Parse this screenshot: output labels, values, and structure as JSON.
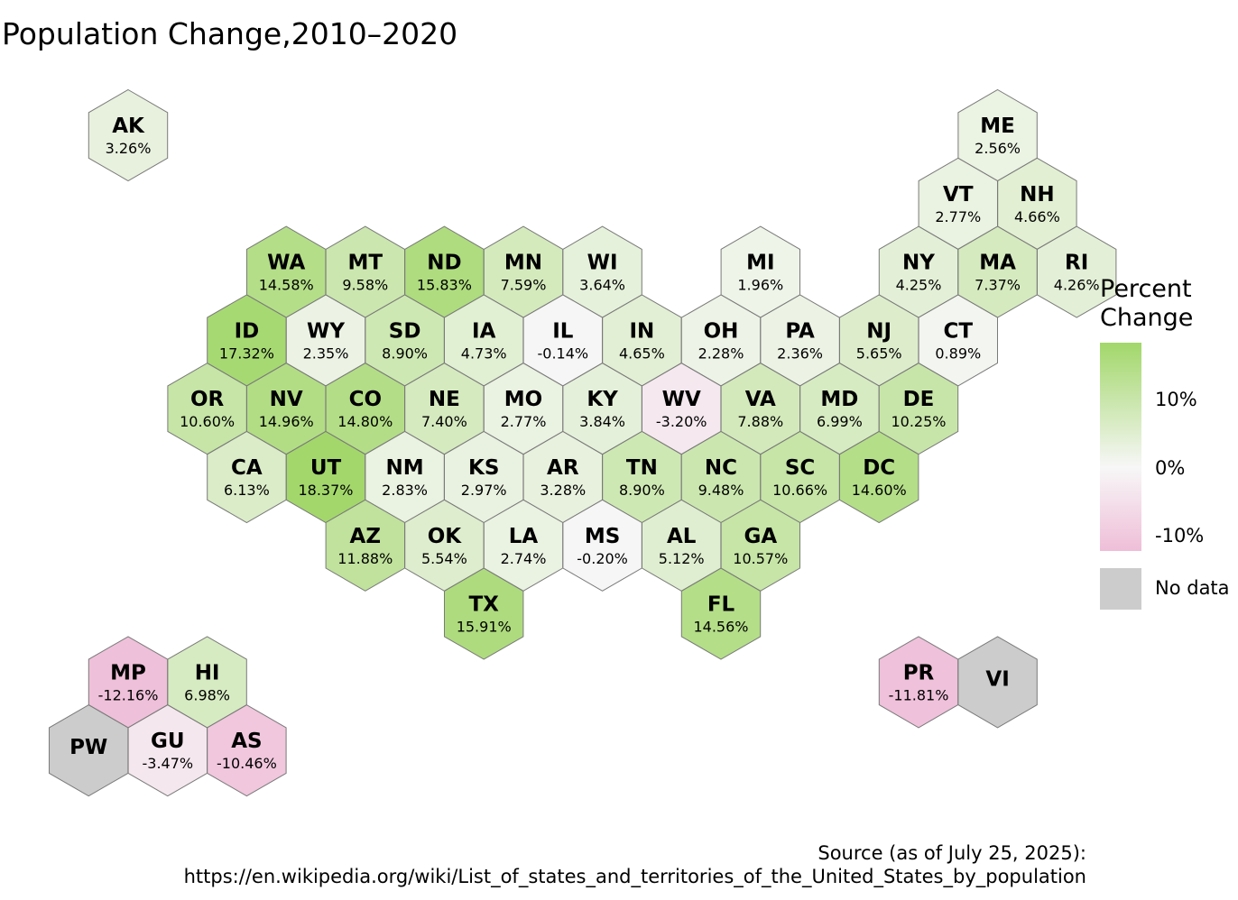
{
  "title": "Population Change,2010–2020",
  "legend": {
    "title_line1": "Percent",
    "title_line2": "Change",
    "ticks": [
      "10%",
      "0%",
      "-10%"
    ],
    "no_data_label": "No data",
    "colors": {
      "high": "#a2d76a",
      "mid": "#f7f7f7",
      "low": "#efbed8",
      "no_data": "#cccccc"
    }
  },
  "source": {
    "line1": "Source (as of July 25, 2025):",
    "line2": "https://en.wikipedia.org/wiki/List_of_states_and_territories_of_the_United_States_by_population"
  },
  "states": [
    {
      "code": "AK",
      "label": "3.26%",
      "value": 3.26
    },
    {
      "code": "ME",
      "label": "2.56%",
      "value": 2.56
    },
    {
      "code": "VT",
      "label": "2.77%",
      "value": 2.77
    },
    {
      "code": "NH",
      "label": "4.66%",
      "value": 4.66
    },
    {
      "code": "WA",
      "label": "14.58%",
      "value": 14.58
    },
    {
      "code": "MT",
      "label": "9.58%",
      "value": 9.58
    },
    {
      "code": "ND",
      "label": "15.83%",
      "value": 15.83
    },
    {
      "code": "MN",
      "label": "7.59%",
      "value": 7.59
    },
    {
      "code": "WI",
      "label": "3.64%",
      "value": 3.64
    },
    {
      "code": "MI",
      "label": "1.96%",
      "value": 1.96
    },
    {
      "code": "NY",
      "label": "4.25%",
      "value": 4.25
    },
    {
      "code": "MA",
      "label": "7.37%",
      "value": 7.37
    },
    {
      "code": "RI",
      "label": "4.26%",
      "value": 4.26
    },
    {
      "code": "ID",
      "label": "17.32%",
      "value": 17.32
    },
    {
      "code": "WY",
      "label": "2.35%",
      "value": 2.35
    },
    {
      "code": "SD",
      "label": "8.90%",
      "value": 8.9
    },
    {
      "code": "IA",
      "label": "4.73%",
      "value": 4.73
    },
    {
      "code": "IL",
      "label": "-0.14%",
      "value": -0.14
    },
    {
      "code": "IN",
      "label": "4.65%",
      "value": 4.65
    },
    {
      "code": "OH",
      "label": "2.28%",
      "value": 2.28
    },
    {
      "code": "PA",
      "label": "2.36%",
      "value": 2.36
    },
    {
      "code": "NJ",
      "label": "5.65%",
      "value": 5.65
    },
    {
      "code": "CT",
      "label": "0.89%",
      "value": 0.89
    },
    {
      "code": "OR",
      "label": "10.60%",
      "value": 10.6
    },
    {
      "code": "NV",
      "label": "14.96%",
      "value": 14.96
    },
    {
      "code": "CO",
      "label": "14.80%",
      "value": 14.8
    },
    {
      "code": "NE",
      "label": "7.40%",
      "value": 7.4
    },
    {
      "code": "MO",
      "label": "2.77%",
      "value": 2.77
    },
    {
      "code": "KY",
      "label": "3.84%",
      "value": 3.84
    },
    {
      "code": "WV",
      "label": "-3.20%",
      "value": -3.2
    },
    {
      "code": "VA",
      "label": "7.88%",
      "value": 7.88
    },
    {
      "code": "MD",
      "label": "6.99%",
      "value": 6.99
    },
    {
      "code": "DE",
      "label": "10.25%",
      "value": 10.25
    },
    {
      "code": "CA",
      "label": "6.13%",
      "value": 6.13
    },
    {
      "code": "UT",
      "label": "18.37%",
      "value": 18.37
    },
    {
      "code": "NM",
      "label": "2.83%",
      "value": 2.83
    },
    {
      "code": "KS",
      "label": "2.97%",
      "value": 2.97
    },
    {
      "code": "AR",
      "label": "3.28%",
      "value": 3.28
    },
    {
      "code": "TN",
      "label": "8.90%",
      "value": 8.9
    },
    {
      "code": "NC",
      "label": "9.48%",
      "value": 9.48
    },
    {
      "code": "SC",
      "label": "10.66%",
      "value": 10.66
    },
    {
      "code": "DC",
      "label": "14.60%",
      "value": 14.6
    },
    {
      "code": "AZ",
      "label": "11.88%",
      "value": 11.88
    },
    {
      "code": "OK",
      "label": "5.54%",
      "value": 5.54
    },
    {
      "code": "LA",
      "label": "2.74%",
      "value": 2.74
    },
    {
      "code": "MS",
      "label": "-0.20%",
      "value": -0.2
    },
    {
      "code": "AL",
      "label": "5.12%",
      "value": 5.12
    },
    {
      "code": "GA",
      "label": "10.57%",
      "value": 10.57
    },
    {
      "code": "TX",
      "label": "15.91%",
      "value": 15.91
    },
    {
      "code": "FL",
      "label": "14.56%",
      "value": 14.56
    },
    {
      "code": "MP",
      "label": "-12.16%",
      "value": -12.16
    },
    {
      "code": "HI",
      "label": "6.98%",
      "value": 6.98
    },
    {
      "code": "PR",
      "label": "-11.81%",
      "value": -11.81
    },
    {
      "code": "VI",
      "label": "",
      "value": null
    },
    {
      "code": "PW",
      "label": "",
      "value": null
    },
    {
      "code": "GU",
      "label": "-3.47%",
      "value": -3.47
    },
    {
      "code": "AS",
      "label": "-10.46%",
      "value": -10.46
    }
  ]
}
